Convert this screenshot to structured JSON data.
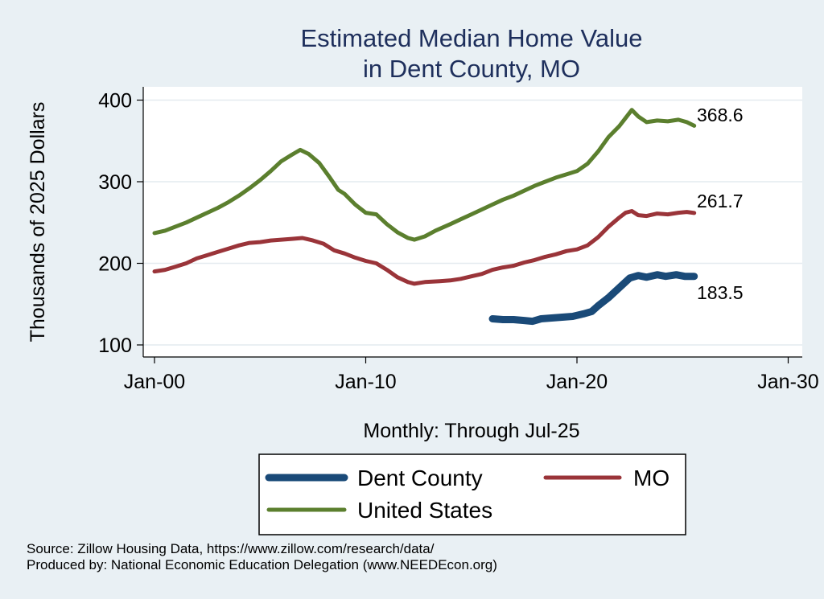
{
  "chart_data": {
    "type": "line",
    "title": [
      "Estimated Median Home Value",
      "in Dent County, MO"
    ],
    "xlabel": "Monthly: Through Jul-25",
    "ylabel": "Thousands of 2025 Dollars",
    "x_ticks": [
      {
        "label": "Jan-00",
        "value": 2000
      },
      {
        "label": "Jan-10",
        "value": 2010
      },
      {
        "label": "Jan-20",
        "value": 2020
      },
      {
        "label": "Jan-30",
        "value": 2030
      }
    ],
    "y_ticks": [
      100,
      200,
      300,
      400
    ],
    "xlim": [
      1999.5,
      2030
    ],
    "ylim": [
      90,
      415
    ],
    "grid": true,
    "legend_position": "bottom",
    "series": [
      {
        "name": "Dent County",
        "color": "#1a4a78",
        "end_label": "183.5",
        "points": [
          [
            2016.0,
            132
          ],
          [
            2016.5,
            131
          ],
          [
            2017.0,
            131
          ],
          [
            2017.5,
            130
          ],
          [
            2017.9,
            129
          ],
          [
            2018.3,
            132
          ],
          [
            2018.8,
            133
          ],
          [
            2019.3,
            134
          ],
          [
            2019.8,
            135
          ],
          [
            2020.3,
            138
          ],
          [
            2020.7,
            141
          ],
          [
            2021.0,
            148
          ],
          [
            2021.5,
            158
          ],
          [
            2022.0,
            170
          ],
          [
            2022.5,
            182
          ],
          [
            2022.9,
            185
          ],
          [
            2023.3,
            183
          ],
          [
            2023.8,
            186
          ],
          [
            2024.2,
            184
          ],
          [
            2024.7,
            186
          ],
          [
            2025.1,
            184
          ],
          [
            2025.55,
            184
          ]
        ]
      },
      {
        "name": "MO",
        "color": "#9a3439",
        "end_label": "261.7",
        "points": [
          [
            2000.0,
            190
          ],
          [
            2000.5,
            192
          ],
          [
            2001.0,
            196
          ],
          [
            2001.5,
            200
          ],
          [
            2002.0,
            206
          ],
          [
            2002.5,
            210
          ],
          [
            2003.0,
            214
          ],
          [
            2003.5,
            218
          ],
          [
            2004.0,
            222
          ],
          [
            2004.5,
            225
          ],
          [
            2005.0,
            226
          ],
          [
            2005.5,
            228
          ],
          [
            2006.0,
            229
          ],
          [
            2006.5,
            230
          ],
          [
            2007.0,
            231
          ],
          [
            2007.5,
            228
          ],
          [
            2008.0,
            224
          ],
          [
            2008.5,
            216
          ],
          [
            2009.0,
            212
          ],
          [
            2009.5,
            207
          ],
          [
            2010.0,
            203
          ],
          [
            2010.5,
            200
          ],
          [
            2011.0,
            192
          ],
          [
            2011.5,
            183
          ],
          [
            2012.0,
            177
          ],
          [
            2012.3,
            175
          ],
          [
            2012.8,
            177
          ],
          [
            2013.5,
            178
          ],
          [
            2014.0,
            179
          ],
          [
            2014.5,
            181
          ],
          [
            2015.0,
            184
          ],
          [
            2015.5,
            187
          ],
          [
            2016.0,
            192
          ],
          [
            2016.5,
            195
          ],
          [
            2017.0,
            197
          ],
          [
            2017.5,
            201
          ],
          [
            2018.0,
            204
          ],
          [
            2018.5,
            208
          ],
          [
            2019.0,
            211
          ],
          [
            2019.5,
            215
          ],
          [
            2020.0,
            217
          ],
          [
            2020.5,
            222
          ],
          [
            2021.0,
            232
          ],
          [
            2021.5,
            245
          ],
          [
            2022.0,
            256
          ],
          [
            2022.3,
            262
          ],
          [
            2022.6,
            264
          ],
          [
            2022.9,
            259
          ],
          [
            2023.3,
            258
          ],
          [
            2023.8,
            261
          ],
          [
            2024.3,
            260
          ],
          [
            2024.8,
            262
          ],
          [
            2025.2,
            263
          ],
          [
            2025.55,
            261.7
          ]
        ]
      },
      {
        "name": "United States",
        "color": "#5b7f2e",
        "end_label": "368.6",
        "points": [
          [
            2000.0,
            237
          ],
          [
            2000.5,
            240
          ],
          [
            2001.0,
            245
          ],
          [
            2001.5,
            250
          ],
          [
            2002.0,
            256
          ],
          [
            2002.5,
            262
          ],
          [
            2003.0,
            268
          ],
          [
            2003.5,
            275
          ],
          [
            2004.0,
            283
          ],
          [
            2004.5,
            292
          ],
          [
            2005.0,
            302
          ],
          [
            2005.5,
            313
          ],
          [
            2006.0,
            325
          ],
          [
            2006.5,
            333
          ],
          [
            2006.9,
            339
          ],
          [
            2007.3,
            334
          ],
          [
            2007.8,
            323
          ],
          [
            2008.3,
            305
          ],
          [
            2008.7,
            290
          ],
          [
            2009.0,
            285
          ],
          [
            2009.5,
            272
          ],
          [
            2010.0,
            262
          ],
          [
            2010.5,
            260
          ],
          [
            2011.0,
            248
          ],
          [
            2011.5,
            238
          ],
          [
            2012.0,
            231
          ],
          [
            2012.3,
            229
          ],
          [
            2012.8,
            233
          ],
          [
            2013.3,
            240
          ],
          [
            2014.0,
            248
          ],
          [
            2014.5,
            254
          ],
          [
            2015.0,
            260
          ],
          [
            2015.5,
            266
          ],
          [
            2016.0,
            272
          ],
          [
            2016.5,
            278
          ],
          [
            2017.0,
            283
          ],
          [
            2017.5,
            289
          ],
          [
            2018.0,
            295
          ],
          [
            2018.5,
            300
          ],
          [
            2019.0,
            305
          ],
          [
            2019.5,
            309
          ],
          [
            2020.0,
            313
          ],
          [
            2020.5,
            322
          ],
          [
            2021.0,
            337
          ],
          [
            2021.5,
            355
          ],
          [
            2022.0,
            368
          ],
          [
            2022.3,
            378
          ],
          [
            2022.6,
            388
          ],
          [
            2022.9,
            380
          ],
          [
            2023.3,
            373
          ],
          [
            2023.8,
            375
          ],
          [
            2024.3,
            374
          ],
          [
            2024.8,
            376
          ],
          [
            2025.2,
            373
          ],
          [
            2025.55,
            368.6
          ]
        ]
      }
    ]
  },
  "source": "Source: Zillow Housing Data, https://www.zillow.com/research/data/",
  "produced_by": "Produced by: National Economic Education Delegation (www.NEEDEcon.org)"
}
